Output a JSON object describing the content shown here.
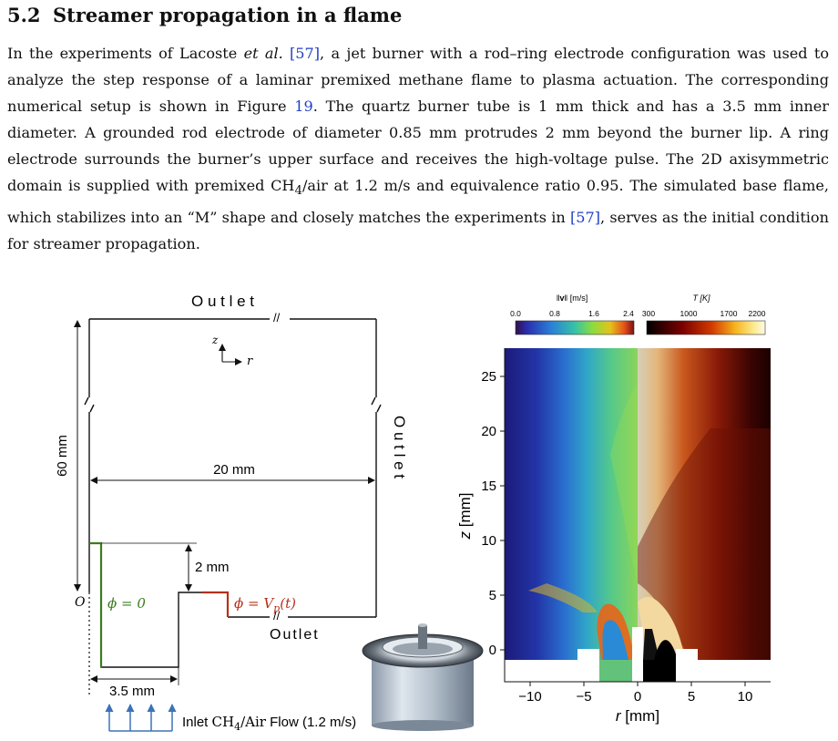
{
  "section": {
    "number": "5.2",
    "title": "Streamer propagation in a flame"
  },
  "paragraph": {
    "s1_pre": "In the experiments of Lacoste ",
    "s1_etal": "et al.",
    "s1_cite": "[57]",
    "s1_post": ", a jet burner with a rod–ring electrode configuration was used to analyze the step response of a laminar premixed methane flame to plasma actuation. The corresponding numerical setup is shown in Figure ",
    "fig_ref": "19",
    "s2": ". The quartz burner tube is 1 mm thick and has a 3.5 mm inner diameter. A grounded rod electrode of diameter 0.85 mm protrudes 2 mm beyond the burner lip. A ring electrode surrounds the burner’s upper surface and receives the high-voltage pulse. The 2D axisymmetric domain is supplied with premixed CH",
    "s2_sub": "4",
    "s3": "/air at 1.2 m/s and equivalence ratio 0.95. The simulated base flame, which stabilizes into an “M” shape and closely matches the experiments in ",
    "s3_cite": "[57]",
    "s4": ", serves as the initial condition for streamer propagation."
  },
  "schematic": {
    "outlet_top": "O u t l e t",
    "outlet_right": "O u t l e t",
    "outlet_bottom": "Outlet",
    "axis_z": "z",
    "axis_r": "r",
    "height": "60 mm",
    "width": "20 mm",
    "rod": "2 mm",
    "inner": "3.5 mm",
    "origin": "O",
    "phi_ground": "ϕ = 0",
    "phi_pulse_pre": "ϕ = V",
    "phi_pulse_sub": "p",
    "phi_pulse_post": "(t)",
    "inlet_pre": "Inlet ",
    "inlet_ch": "CH",
    "inlet_sub": "4",
    "inlet_air": "/Air",
    "inlet_post": " Flow (1.2 m/s)",
    "break_mark": "//",
    "colors": {
      "ground": "#3a7d1e",
      "pulse": "#b5301a"
    }
  },
  "colorbars": {
    "velocity": {
      "label_pre": "‖",
      "label_bold": "v",
      "label_post": "‖ [m/s]",
      "ticks": [
        "0.0",
        "0.8",
        "1.6",
        "2.4"
      ]
    },
    "temperature": {
      "label": "T [K]",
      "ticks": [
        "300",
        "1000",
        "1700",
        "2200"
      ]
    }
  },
  "field_plot": {
    "xlabel_var": "r",
    "xlabel_unit": " [mm]",
    "ylabel_var": "z",
    "ylabel_unit": " [mm]",
    "xticks": [
      "−10",
      "−5",
      "0",
      "5",
      "10"
    ],
    "yticks": [
      "0",
      "5",
      "10",
      "15",
      "20",
      "25"
    ]
  }
}
